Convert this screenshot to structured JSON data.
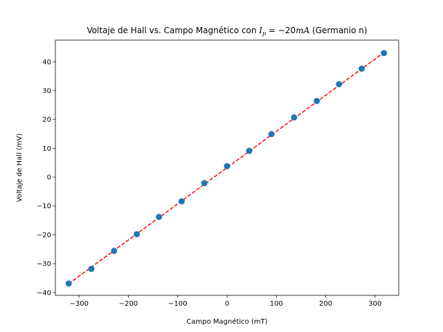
{
  "chart_data": {
    "type": "scatter",
    "title": {
      "prefix": "Voltaje de Hall vs. Campo Magnético con ",
      "var": "I",
      "sub": "p",
      "eq": " = −20",
      "unit": "mA",
      "suffix": " (Germanio n)"
    },
    "xlabel": "Campo Magnético (mT)",
    "ylabel": "Voltaje de Hall (mV)",
    "xlim": [
      -348,
      348
    ],
    "ylim": [
      -41,
      47.5
    ],
    "xticks": [
      -300,
      -200,
      -100,
      0,
      100,
      200,
      300
    ],
    "yticks": [
      -40,
      -30,
      -20,
      -10,
      0,
      10,
      20,
      30,
      40
    ],
    "grid": false,
    "colors": {
      "points": "#1f77b4",
      "fit": "#ff0000"
    },
    "series": [
      {
        "kind": "points",
        "x": [
          -321,
          -275,
          -229,
          -183,
          -138,
          -92,
          -46,
          0,
          45,
          90,
          136,
          182,
          227,
          273,
          318
        ],
        "y": [
          -36.9,
          -31.8,
          -25.6,
          -19.8,
          -13.8,
          -8.4,
          -2.1,
          3.8,
          9.1,
          14.9,
          20.7,
          26.4,
          32.2,
          37.6,
          43.0
        ]
      },
      {
        "kind": "fit-line",
        "style": "dashed",
        "x": [
          -321,
          318
        ],
        "y": [
          -37.0,
          43.2
        ]
      }
    ]
  }
}
